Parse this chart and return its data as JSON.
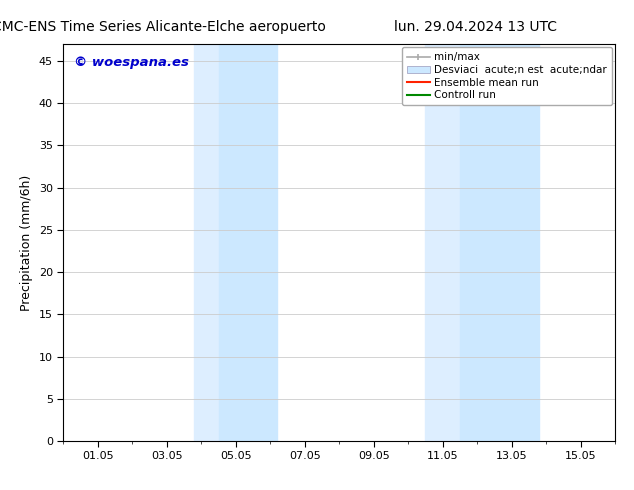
{
  "title_left": "CMC-ENS Time Series Alicante-Elche aeropuerto",
  "title_right": "lun. 29.04.2024 13 UTC",
  "ylabel": "Precipitation (mm/6h)",
  "ylim": [
    0,
    47
  ],
  "yticks": [
    0,
    5,
    10,
    15,
    20,
    25,
    30,
    35,
    40,
    45
  ],
  "xtick_labels": [
    "01.05",
    "03.05",
    "05.05",
    "07.05",
    "09.05",
    "11.05",
    "13.05",
    "15.05"
  ],
  "xtick_positions": [
    1,
    3,
    5,
    7,
    9,
    11,
    13,
    15
  ],
  "xmin": 0.0,
  "xmax": 16.0,
  "shaded_regions": [
    {
      "xmin": 3.8,
      "xmax": 4.5,
      "color": "#ddeeff"
    },
    {
      "xmin": 4.5,
      "xmax": 6.2,
      "color": "#cce8ff"
    },
    {
      "xmin": 10.5,
      "xmax": 11.5,
      "color": "#ddeeff"
    },
    {
      "xmin": 11.5,
      "xmax": 13.8,
      "color": "#cce8ff"
    }
  ],
  "watermark_text": "© woespana.es",
  "watermark_color": "#0000cc",
  "bg_color": "#ffffff",
  "grid_color": "#cccccc",
  "title_fontsize": 10,
  "tick_fontsize": 8,
  "ylabel_fontsize": 9,
  "legend_fontsize": 7.5
}
